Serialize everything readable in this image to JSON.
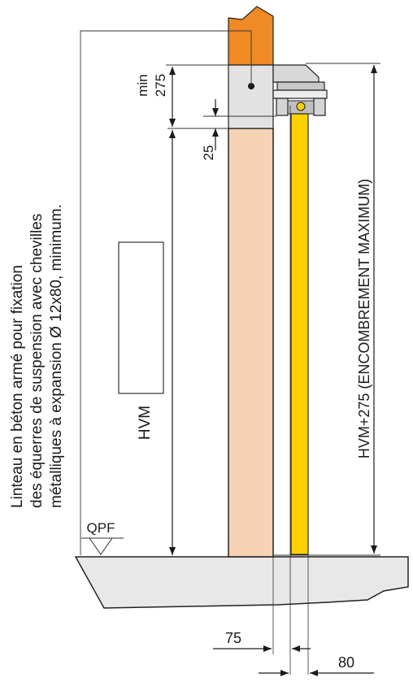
{
  "note": {
    "line1": "Linteau en béton armé pour fixation",
    "line2": "des équerres de suspension avec chevilles",
    "line3": "métalliques à expansion  Ø 12x80, minimum."
  },
  "dimensions": {
    "min_label": "min",
    "min_value": "275",
    "gap_25": "25",
    "hvm": "HVM",
    "total": "HVM+275 (ENCOMBREMENT MAXIMUM)",
    "w75": "75",
    "w80": "80"
  },
  "floor_label": "QPF",
  "colors": {
    "lintel": "#f08a24",
    "wall": "#f6d2b4",
    "door_leaf": "#ffd000",
    "ground": "#e8e8e8",
    "bracket": "#d8d8d8",
    "bracket_dark": "#b5b5b5"
  }
}
